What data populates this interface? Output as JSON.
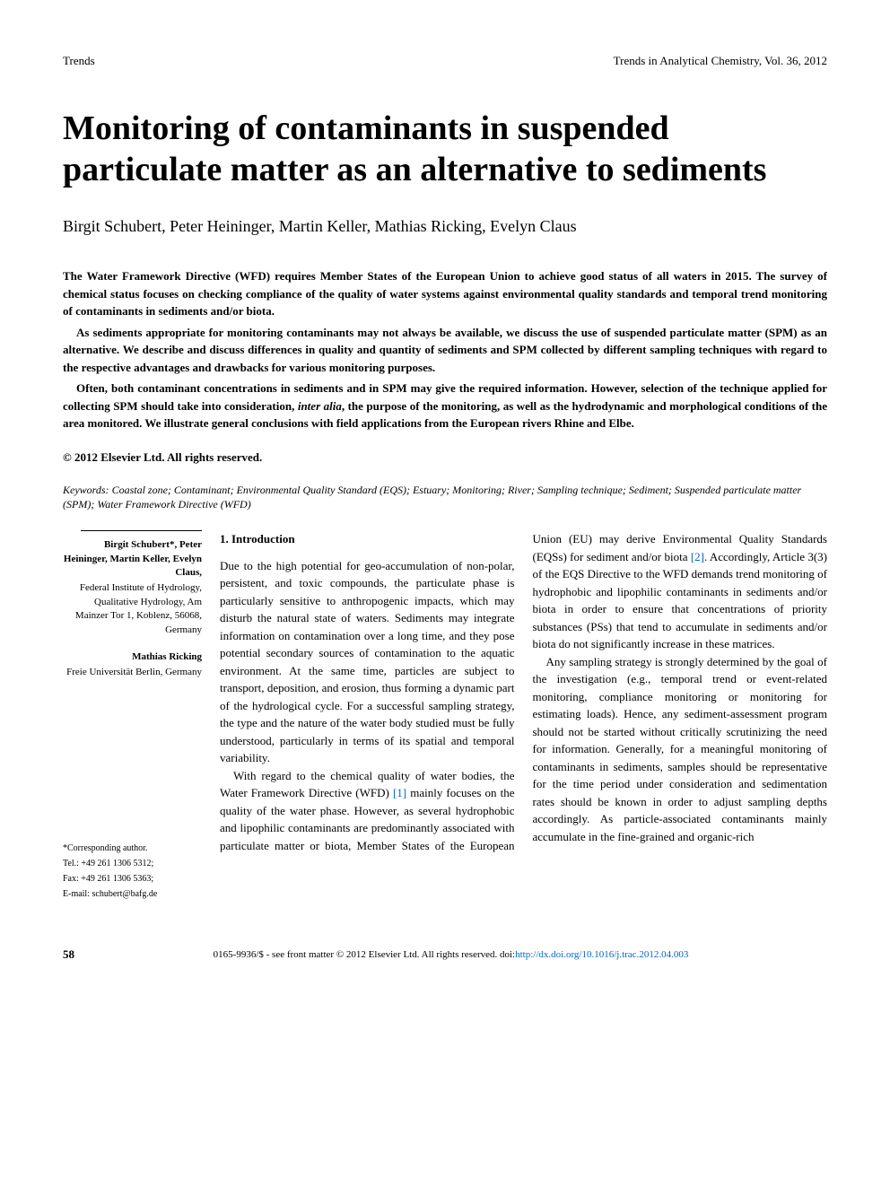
{
  "header": {
    "left": "Trends",
    "right": "Trends in Analytical Chemistry, Vol. 36, 2012"
  },
  "title": "Monitoring of contaminants in suspended particulate matter as an alternative to sediments",
  "authors": "Birgit Schubert, Peter Heininger, Martin Keller, Mathias Ricking, Evelyn Claus",
  "abstract": {
    "p1": "The Water Framework Directive (WFD) requires Member States of the European Union to achieve good status of all waters in 2015. The survey of chemical status focuses on checking compliance of the quality of water systems against environmental quality standards and temporal trend monitoring of contaminants in sediments and/or biota.",
    "p2": "As sediments appropriate for monitoring contaminants may not always be available, we discuss the use of suspended particulate matter (SPM) as an alternative. We describe and discuss differences in quality and quantity of sediments and SPM collected by different sampling techniques with regard to the respective advantages and drawbacks for various monitoring purposes.",
    "p3_before": "Often, both contaminant concentrations in sediments and in SPM may give the required information. However, selection of the technique applied for collecting SPM should take into consideration, ",
    "p3_italic": "inter alia",
    "p3_after": ", the purpose of the monitoring, as well as the hydrodynamic and morphological conditions of the area monitored. We illustrate general conclusions with field applications from the European rivers Rhine and Elbe."
  },
  "copyright": "© 2012 Elsevier Ltd. All rights reserved.",
  "keywords": {
    "label": "Keywords:",
    "text": " Coastal zone; Contaminant; Environmental Quality Standard (EQS); Estuary; Monitoring; River; Sampling technique; Sediment; Suspended particulate matter (SPM); Water Framework Directive (WFD)"
  },
  "sidebar": {
    "block1": {
      "names": "Birgit Schubert*, Peter Heininger, Martin Keller, Evelyn Claus,",
      "affiliation": "Federal Institute of Hydrology, Qualitative Hydrology, Am Mainzer Tor 1, Koblenz, 56068, Germany"
    },
    "block2": {
      "names": "Mathias Ricking",
      "affiliation": "Freie Universität Berlin, Germany"
    },
    "corresponding": {
      "label": "*Corresponding author.",
      "tel": "Tel.: +49 261 1306 5312;",
      "fax": "Fax: +49 261 1306 5363;",
      "email": "E-mail: schubert@bafg.de"
    }
  },
  "body": {
    "section_heading": "1. Introduction",
    "p1": "Due to the high potential for geo-accumulation of non-polar, persistent, and toxic compounds, the particulate phase is particularly sensitive to anthropogenic impacts, which may disturb the natural state of waters. Sediments may integrate information on contamination over a long time, and they pose potential secondary sources of contamination to the aquatic environment. At the same time, particles are subject to transport, deposition, and erosion, thus forming a dynamic part of the hydrological cycle. For a successful sampling strategy, the type and the nature of the water body studied must be fully understood, particularly in terms of its spatial and temporal variability.",
    "p2_before": "With regard to the chemical quality of water bodies, the Water Framework Directive (WFD) ",
    "p2_ref1": "[1]",
    "p2_mid": " mainly focuses on the quality of the water phase. However, as several hydrophobic and lipophilic contaminants are predominantly associated with particulate matter or biota, Member States of the European Union (EU) may derive Environmental Quality Standards (EQSs) for sediment and/or biota ",
    "p2_ref2": "[2]",
    "p2_after": ". Accordingly, Article 3(3) of the EQS Directive to the WFD demands trend monitoring of hydrophobic and lipophilic contaminants in sediments and/or biota in order to ensure that concentrations of priority substances (PSs) that tend to accumulate in sediments and/or biota do not significantly increase in these matrices.",
    "p3": "Any sampling strategy is strongly determined by the goal of the investigation (e.g., temporal trend or event-related monitoring, compliance monitoring or monitoring for estimating loads). Hence, any sediment-assessment program should not be started without critically scrutinizing the need for information. Generally, for a meaningful monitoring of contaminants in sediments, samples should be representative for the time period under consideration and sedimentation rates should be known in order to adjust sampling depths accordingly. As particle-associated contaminants mainly accumulate in the fine-grained and organic-rich"
  },
  "footer": {
    "page": "58",
    "center_before": "0165-9936/$ - see front matter © 2012 Elsevier Ltd. All rights reserved. doi:",
    "doi": "http://dx.doi.org/10.1016/j.trac.2012.04.003"
  },
  "colors": {
    "text": "#000000",
    "link": "#0066cc",
    "background": "#ffffff"
  },
  "fonts": {
    "body_family": "Georgia, Times New Roman, serif",
    "title_size": 38,
    "authors_size": 18,
    "body_size": 13,
    "sidebar_size": 11,
    "footer_size": 11
  }
}
